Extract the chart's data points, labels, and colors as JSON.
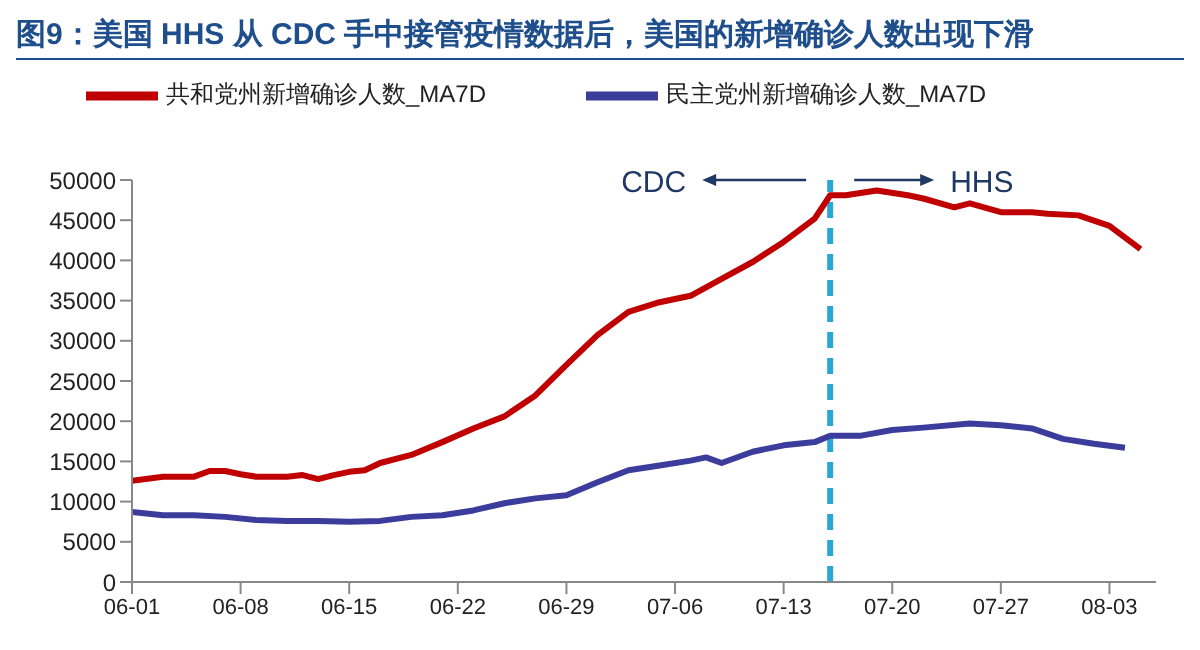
{
  "chart_data": {
    "type": "line",
    "title": "图9：美国 HHS 从 CDC 手中接管疫情数据后，美国的新增确诊人数出现下滑",
    "series": [
      {
        "name": "共和党州新增确诊人数_MA7D",
        "color": "#c00000",
        "x": [
          "--06-01",
          "--06-03",
          "--06-05",
          "--06-06",
          "--06-07",
          "--06-08",
          "--06-09",
          "--06-11",
          "--06-12",
          "--06-13",
          "--06-14",
          "--06-15",
          "--06-16",
          "--06-17",
          "--06-19",
          "--06-21",
          "--06-23",
          "--06-25",
          "--06-27",
          "--06-29",
          "--07-01",
          "--07-03",
          "--07-05",
          "--07-07",
          "--07-09",
          "--07-11",
          "--07-13",
          "--07-15",
          "--07-16",
          "--07-17",
          "--07-19",
          "--07-21",
          "--07-22",
          "--07-24",
          "--07-25",
          "--07-27",
          "--07-29",
          "--07-30",
          "--08-01",
          "--08-03",
          "--08-05"
        ],
        "values": [
          12600,
          13100,
          13100,
          13800,
          13800,
          13400,
          13100,
          13100,
          13300,
          12800,
          13300,
          13700,
          13900,
          14800,
          15800,
          17400,
          19100,
          20600,
          23200,
          27000,
          30700,
          33600,
          34800,
          35600,
          37700,
          39800,
          42300,
          45200,
          48100,
          48100,
          48700,
          48100,
          47700,
          46600,
          47100,
          46000,
          46000,
          45800,
          45600,
          44300,
          41400
        ]
      },
      {
        "name": "民主党州新增确诊人数_MA7D",
        "color": "#3c3c9c",
        "x": [
          "--06-01",
          "--06-03",
          "--06-05",
          "--06-07",
          "--06-09",
          "--06-11",
          "--06-13",
          "--06-15",
          "--06-17",
          "--06-19",
          "--06-21",
          "--06-23",
          "--06-25",
          "--06-27",
          "--06-29",
          "--07-01",
          "--07-03",
          "--07-05",
          "--07-07",
          "--07-08",
          "--07-09",
          "--07-11",
          "--07-13",
          "--07-15",
          "--07-16",
          "--07-18",
          "--07-20",
          "--07-22",
          "--07-25",
          "--07-27",
          "--07-29",
          "--07-31",
          "--08-02",
          "--08-04"
        ],
        "values": [
          8700,
          8300,
          8300,
          8100,
          7700,
          7600,
          7600,
          7500,
          7600,
          8100,
          8300,
          8900,
          9800,
          10400,
          10800,
          12400,
          13900,
          14500,
          15100,
          15500,
          14800,
          16200,
          17000,
          17400,
          18200,
          18200,
          18900,
          19200,
          19700,
          19500,
          19100,
          17800,
          17200,
          16700
        ]
      }
    ],
    "xlim": [
      "--06-01",
      "--08-06"
    ],
    "xticks": [
      {
        "value": "--06-01",
        "label": "06-01"
      },
      {
        "value": "--06-08",
        "label": "06-08"
      },
      {
        "value": "--06-15",
        "label": "06-15"
      },
      {
        "value": "--06-22",
        "label": "06-22"
      },
      {
        "value": "--06-29",
        "label": "06-29"
      },
      {
        "value": "--07-06",
        "label": "07-06"
      },
      {
        "value": "--07-13",
        "label": "07-13"
      },
      {
        "value": "--07-20",
        "label": "07-20"
      },
      {
        "value": "--07-27",
        "label": "07-27"
      },
      {
        "value": "--08-03",
        "label": "08-03"
      }
    ],
    "ylim": [
      0,
      50000
    ],
    "yticks": [
      0,
      5000,
      10000,
      15000,
      20000,
      25000,
      30000,
      35000,
      40000,
      45000,
      50000
    ],
    "ref_lines": [
      {
        "axis": "x",
        "value": "--07-16",
        "color": "#29a8d8",
        "line_style": "dashed"
      }
    ],
    "annotations": [
      "CDC",
      "HHS"
    ],
    "legend": "top",
    "grid": false,
    "marker": "none",
    "line_style": "solid"
  }
}
